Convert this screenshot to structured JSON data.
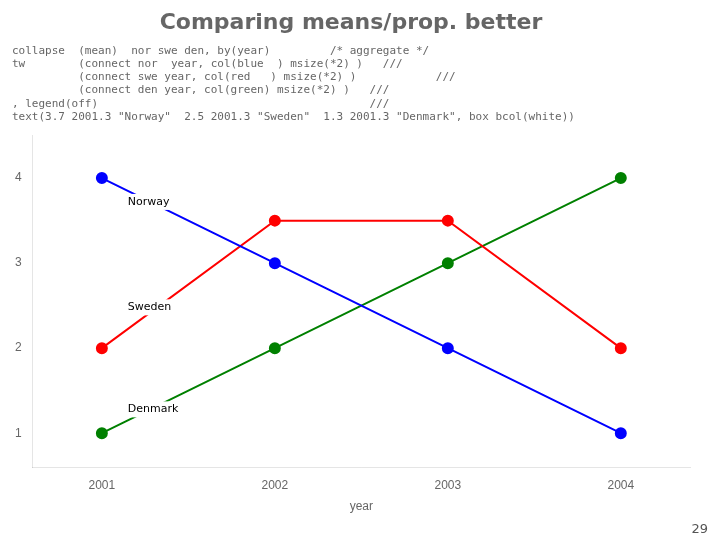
{
  "chart_data": {
    "type": "line",
    "title": "Comparing means/prop. better",
    "subtitle": [
      "collapse  (mean)  nor swe den, by(year)         /* aggregate */",
      "tw        (connect nor  year, col(blue  ) msize(*2) )   ///",
      "          (connect swe year, col(red   ) msize(*2) )            ///",
      "          (connect den year, col(green) msize(*2) )   ///",
      ", legend(off)                                         ///",
      "text(3.7 2001.3 \"Norway\"  2.5 2001.3 \"Sweden\"  1.3 2001.3 \"Denmark\", box bcol(white))"
    ],
    "x": [
      2001,
      2002,
      2003,
      2004
    ],
    "series": [
      {
        "name": "Norway",
        "color": "blue",
        "values": [
          4,
          3,
          2,
          1
        ]
      },
      {
        "name": "Sweden",
        "color": "red",
        "values": [
          2,
          3.5,
          3.5,
          2
        ]
      },
      {
        "name": "Denmark",
        "color": "green",
        "values": [
          1,
          2,
          3,
          4
        ]
      }
    ],
    "xlabel": "year",
    "xlim": [
      2000.6,
      2004.4
    ],
    "xticks": [
      2001,
      2002,
      2003,
      2004
    ],
    "ylim": [
      0.6,
      4.5
    ],
    "yticks": [
      1,
      2,
      3,
      4
    ],
    "grid": false,
    "marker": "circle",
    "annotations": [
      {
        "text": "Norway",
        "x": 2001.15,
        "y": 3.72
      },
      {
        "text": "Sweden",
        "x": 2001.15,
        "y": 2.48
      },
      {
        "text": "Denmark",
        "x": 2001.15,
        "y": 1.28
      },
      {
        "text": "29"
      }
    ]
  }
}
